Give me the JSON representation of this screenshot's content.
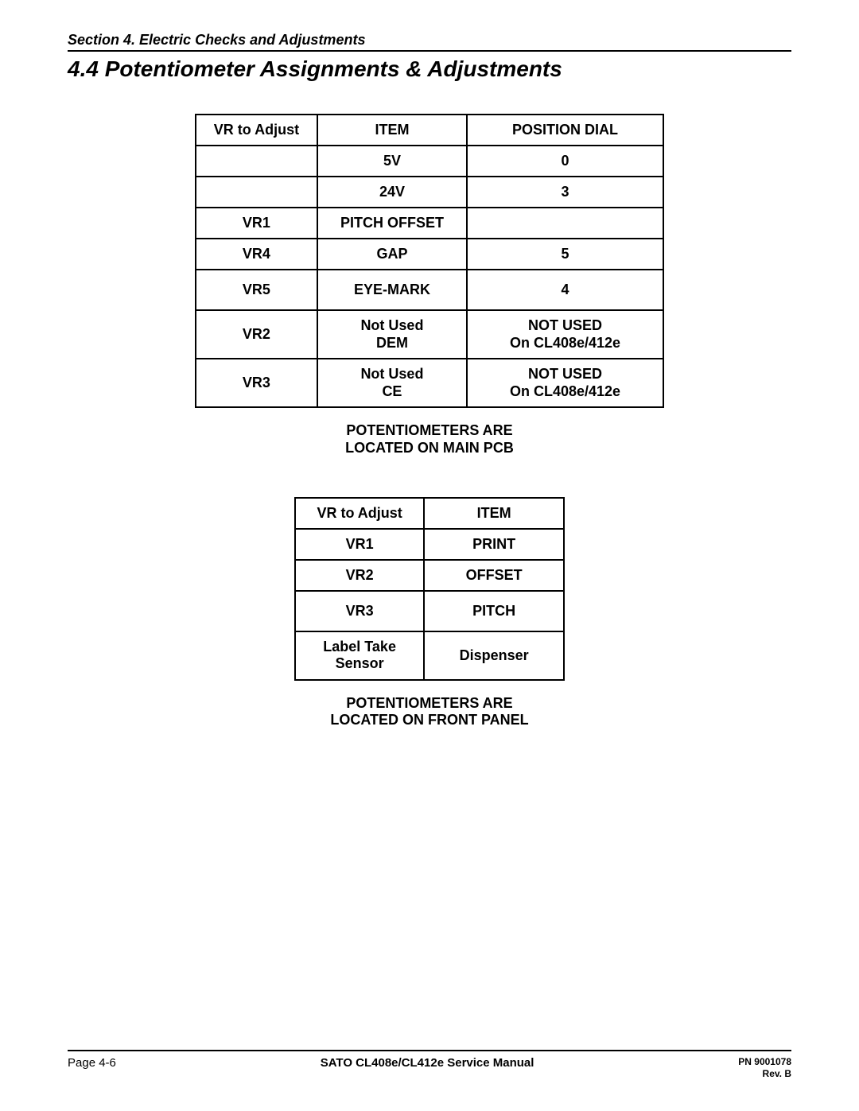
{
  "header": {
    "section_line": "Section 4.  Electric Checks and Adjustments",
    "title": "4.4  Potentiometer Assignments & Adjustments"
  },
  "table1": {
    "headers": [
      "VR to Adjust",
      "ITEM",
      "POSITION DIAL"
    ],
    "rows": [
      {
        "c1": "",
        "c2": "5V",
        "c3": "0"
      },
      {
        "c1": "",
        "c2": "24V",
        "c3": "3"
      },
      {
        "c1": "VR1",
        "c2": "PITCH OFFSET",
        "c3": ""
      },
      {
        "c1": "VR4",
        "c2": "GAP",
        "c3": "5"
      },
      {
        "c1": "VR5",
        "c2": "EYE-MARK",
        "c3": "4"
      },
      {
        "c1": "VR2",
        "c2_l1": "Not Used",
        "c2_l2": "DEM",
        "c3_l1": "NOT USED",
        "c3_l2": "On CL408e/412e"
      },
      {
        "c1": "VR3",
        "c2_l1": "Not Used",
        "c2_l2": "CE",
        "c3_l1": "NOT USED",
        "c3_l2": "On CL408e/412e"
      }
    ],
    "caption_l1": "POTENTIOMETERS ARE",
    "caption_l2": "LOCATED ON MAIN PCB"
  },
  "table2": {
    "headers": [
      "VR to Adjust",
      "ITEM"
    ],
    "rows": [
      {
        "c1": "VR1",
        "c2": "PRINT"
      },
      {
        "c1": "VR2",
        "c2": "OFFSET"
      },
      {
        "c1": "VR3",
        "c2": "PITCH"
      },
      {
        "c1_l1": "Label Take",
        "c1_l2": "Sensor",
        "c2": "Dispenser"
      }
    ],
    "caption_l1": "POTENTIOMETERS ARE",
    "caption_l2": "LOCATED ON FRONT PANEL"
  },
  "footer": {
    "left": "Page 4-6",
    "center": "SATO CL408e/CL412e Service Manual",
    "right_l1": "PN 9001078",
    "right_l2": "Rev. B"
  }
}
